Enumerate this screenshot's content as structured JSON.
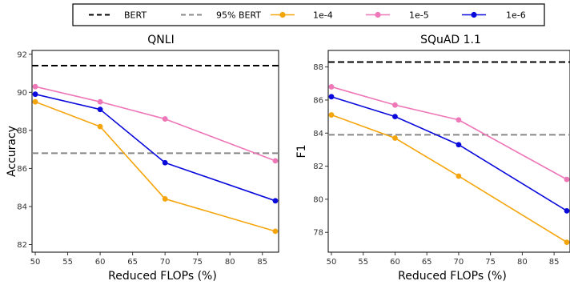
{
  "legend": {
    "items": [
      {
        "label": "BERT",
        "style": "dashed",
        "color": "#000000"
      },
      {
        "label": "95% BERT",
        "style": "dashed",
        "color": "#888888"
      },
      {
        "label": "1e-4",
        "style": "line-marker",
        "color": "#F5A50C"
      },
      {
        "label": "1e-5",
        "style": "line-marker",
        "color": "#EE77B8"
      },
      {
        "label": "1e-6",
        "style": "line-marker",
        "color": "#0A0ADC"
      }
    ]
  },
  "chart_data": [
    {
      "type": "line",
      "title": "QNLI",
      "xlabel": "Reduced FLOPs (%)",
      "ylabel": "Accuracy",
      "xlim": [
        49.5,
        87.5
      ],
      "ylim": [
        81.6,
        92.2
      ],
      "xticks": [
        50,
        55,
        60,
        65,
        70,
        75,
        80,
        85
      ],
      "yticks": [
        82,
        84,
        86,
        88,
        90,
        92
      ],
      "grid": false,
      "legend_position": "top",
      "x": [
        50,
        60,
        70,
        87
      ],
      "series": [
        {
          "name": "1e-4",
          "color": "#F5A50C",
          "values": [
            89.5,
            88.2,
            84.4,
            82.7
          ]
        },
        {
          "name": "1e-5",
          "color": "#EE77B8",
          "values": [
            90.3,
            89.5,
            88.6,
            86.4
          ]
        },
        {
          "name": "1e-6",
          "color": "#0A0ADC",
          "values": [
            89.9,
            89.1,
            86.3,
            84.3
          ]
        }
      ],
      "reference_lines": [
        {
          "name": "BERT",
          "value": 91.4,
          "color": "#000000"
        },
        {
          "name": "95% BERT",
          "value": 86.8,
          "color": "#888888"
        }
      ]
    },
    {
      "type": "line",
      "title": "SQuAD 1.1",
      "xlabel": "Reduced FLOPs (%)",
      "ylabel": "F1",
      "xlim": [
        49.5,
        87.5
      ],
      "ylim": [
        76.8,
        89.0
      ],
      "xticks": [
        50,
        55,
        60,
        65,
        70,
        75,
        80,
        85
      ],
      "yticks": [
        78,
        80,
        82,
        84,
        86,
        88
      ],
      "grid": false,
      "legend_position": "top",
      "x": [
        50,
        60,
        70,
        87
      ],
      "series": [
        {
          "name": "1e-4",
          "color": "#F5A50C",
          "values": [
            85.1,
            83.7,
            81.4,
            77.4
          ]
        },
        {
          "name": "1e-5",
          "color": "#EE77B8",
          "values": [
            86.8,
            85.7,
            84.8,
            81.2
          ]
        },
        {
          "name": "1e-6",
          "color": "#0A0ADC",
          "values": [
            86.2,
            85.0,
            83.3,
            79.3
          ]
        }
      ],
      "reference_lines": [
        {
          "name": "BERT",
          "value": 88.3,
          "color": "#000000"
        },
        {
          "name": "95% BERT",
          "value": 83.9,
          "color": "#888888"
        }
      ]
    }
  ]
}
